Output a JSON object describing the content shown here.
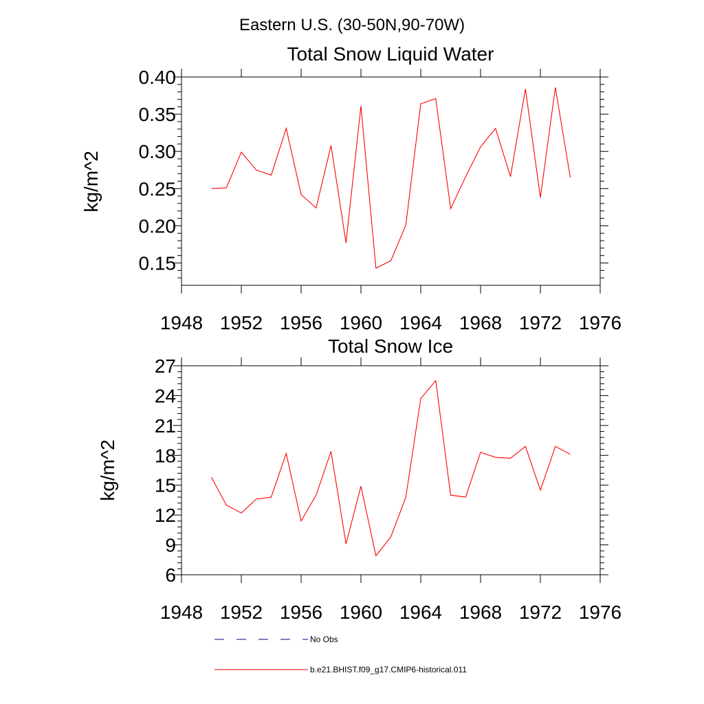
{
  "figure": {
    "title": "Eastern U.S. (30-50N,90-70W)"
  },
  "legend": {
    "items": [
      {
        "label": "No Obs",
        "style": "dashed",
        "color": "#000080"
      },
      {
        "label": "b.e21.BHIST.f09_g17.CMIP6-historical.011",
        "style": "solid",
        "color": "#ff0000"
      }
    ]
  },
  "chart_data": [
    {
      "type": "line",
      "title": "Total Snow Liquid Water",
      "ylabel": "kg/m^2",
      "xlabel": "",
      "xlim": [
        1948,
        1976
      ],
      "ylim": [
        0.12,
        0.4
      ],
      "xticks": [
        "1948",
        "1952",
        "1956",
        "1960",
        "1964",
        "1968",
        "1972",
        "1976"
      ],
      "yticks": [
        "0.15",
        "0.20",
        "0.25",
        "0.30",
        "0.35",
        "0.40"
      ],
      "x": [
        1950,
        1951,
        1952,
        1953,
        1954,
        1955,
        1956,
        1957,
        1958,
        1959,
        1960,
        1961,
        1962,
        1963,
        1964,
        1965,
        1966,
        1967,
        1968,
        1969,
        1970,
        1971,
        1972,
        1973,
        1974
      ],
      "series": [
        {
          "name": "b.e21.BHIST.f09_g17.CMIP6-historical.011",
          "color": "#ff0000",
          "values": [
            0.25,
            0.251,
            0.299,
            0.275,
            0.268,
            0.331,
            0.242,
            0.224,
            0.308,
            0.177,
            0.361,
            0.143,
            0.153,
            0.201,
            0.364,
            0.371,
            0.223,
            0.266,
            0.306,
            0.331,
            0.266,
            0.384,
            0.238,
            0.386,
            0.265
          ]
        }
      ],
      "grid": false
    },
    {
      "type": "line",
      "title": "Total Snow Ice",
      "ylabel": "kg/m^2",
      "xlabel": "",
      "xlim": [
        1948,
        1976
      ],
      "ylim": [
        6,
        27
      ],
      "xticks": [
        "1948",
        "1952",
        "1956",
        "1960",
        "1964",
        "1968",
        "1972",
        "1976"
      ],
      "yticks": [
        "6",
        "9",
        "12",
        "15",
        "18",
        "21",
        "24",
        "27"
      ],
      "x": [
        1950,
        1951,
        1952,
        1953,
        1954,
        1955,
        1956,
        1957,
        1958,
        1959,
        1960,
        1961,
        1962,
        1963,
        1964,
        1965,
        1966,
        1967,
        1968,
        1969,
        1970,
        1971,
        1972,
        1973,
        1974
      ],
      "series": [
        {
          "name": "b.e21.BHIST.f09_g17.CMIP6-historical.011",
          "color": "#ff0000",
          "values": [
            15.8,
            13.0,
            12.2,
            13.6,
            13.8,
            18.2,
            11.4,
            14.0,
            18.4,
            9.1,
            14.9,
            7.9,
            9.8,
            13.8,
            23.7,
            25.5,
            14.0,
            13.8,
            18.3,
            17.8,
            17.7,
            18.9,
            14.5,
            18.9,
            18.1
          ]
        }
      ],
      "grid": false
    }
  ]
}
